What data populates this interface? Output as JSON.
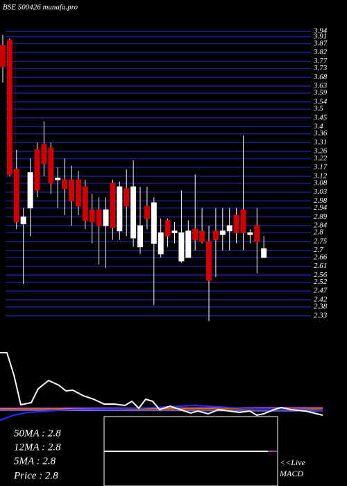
{
  "chart_data": {
    "type": "candlestick",
    "title": "BSE 500426  munafa.pro",
    "up_color": "#ffffff",
    "down_color": "#cc0000",
    "grid": true,
    "grid_color": "#1c1c8c",
    "ylim": [
      2.29,
      3.96
    ],
    "yticks": [
      3.94,
      3.91,
      3.87,
      3.82,
      3.77,
      3.73,
      3.68,
      3.63,
      3.59,
      3.54,
      3.5,
      3.45,
      3.4,
      3.36,
      3.31,
      3.26,
      3.22,
      3.17,
      3.12,
      3.08,
      3.03,
      2.98,
      2.94,
      2.89,
      2.84,
      2.8,
      2.75,
      2.7,
      2.66,
      2.61,
      2.56,
      2.52,
      2.47,
      2.42,
      2.38,
      2.33
    ],
    "open": [
      3.86,
      3.89,
      3.16,
      2.85,
      2.94,
      3.27,
      3.3,
      3.28,
      3.1,
      3.1,
      3.1,
      3.1,
      3.06,
      2.93,
      2.93,
      2.84,
      3.08,
      2.81,
      3.05,
      2.77,
      2.72,
      2.95,
      2.74,
      2.68,
      2.87,
      2.8,
      2.64,
      2.66,
      2.82,
      2.81,
      2.75,
      2.81,
      2.79,
      2.81,
      2.9,
      2.93,
      2.79,
      2.84,
      2.66
    ],
    "high": [
      3.92,
      3.9,
      3.27,
      2.94,
      3.22,
      3.31,
      3.43,
      3.31,
      3.17,
      3.22,
      3.18,
      3.15,
      3.1,
      3.02,
      3.0,
      3.0,
      3.1,
      3.09,
      3.16,
      3.21,
      3.06,
      3.06,
      3.0,
      2.88,
      2.88,
      2.86,
      3.04,
      2.87,
      3.13,
      2.94,
      2.84,
      2.94,
      2.94,
      2.94,
      2.94,
      3.35,
      2.82,
      2.94,
      2.78
    ],
    "low": [
      3.65,
      3.12,
      2.82,
      2.51,
      2.78,
      3.0,
      3.12,
      3.02,
      2.94,
      2.9,
      2.84,
      2.9,
      2.82,
      2.74,
      2.62,
      2.6,
      2.76,
      2.76,
      2.78,
      2.72,
      2.68,
      2.82,
      2.39,
      2.66,
      2.72,
      2.74,
      2.63,
      2.66,
      2.7,
      2.74,
      2.3,
      2.55,
      2.7,
      2.7,
      2.74,
      2.7,
      2.74,
      2.57,
      2.66
    ],
    "close": [
      3.74,
      3.13,
      2.86,
      2.89,
      3.14,
      3.04,
      3.19,
      3.08,
      3.11,
      3.05,
      2.98,
      2.95,
      2.87,
      2.86,
      2.84,
      2.93,
      2.83,
      3.06,
      2.95,
      3.06,
      2.84,
      2.88,
      2.97,
      2.8,
      2.78,
      2.81,
      2.8,
      2.81,
      2.76,
      2.75,
      2.53,
      2.76,
      2.81,
      2.84,
      2.8,
      2.8,
      2.8,
      2.75,
      2.71
    ]
  },
  "ma_labels": [
    "50MA : 2.8",
    "12MA : 2.8",
    "5MA : 2.8",
    "Price  : 2.8"
  ],
  "live_label": "<<Live",
  "macd_label": "MACD"
}
